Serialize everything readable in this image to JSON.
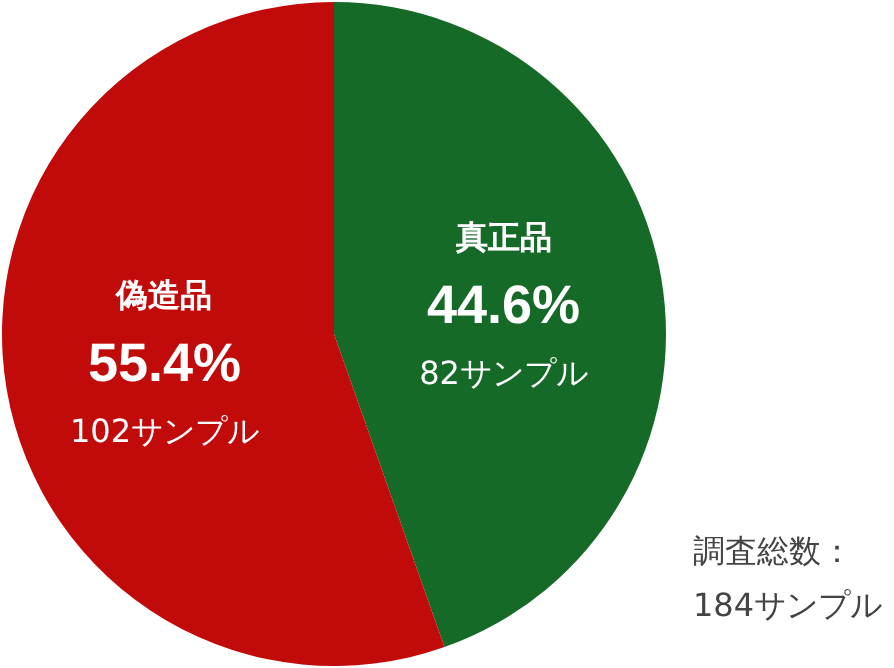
{
  "chart_data": {
    "type": "pie",
    "categories": [
      "真正品",
      "偽造品"
    ],
    "values": [
      44.6,
      55.4
    ],
    "colors": [
      "#156a28",
      "#c10a0a"
    ],
    "value_labels": [
      "44.6%",
      "55.4%"
    ],
    "annotations": [
      {
        "text": "82サンプル",
        "x": "真正品"
      },
      {
        "text": "102サンプル",
        "x": "偽造品"
      },
      "調査総数：\n184サンプル"
    ],
    "legend": false
  }
}
